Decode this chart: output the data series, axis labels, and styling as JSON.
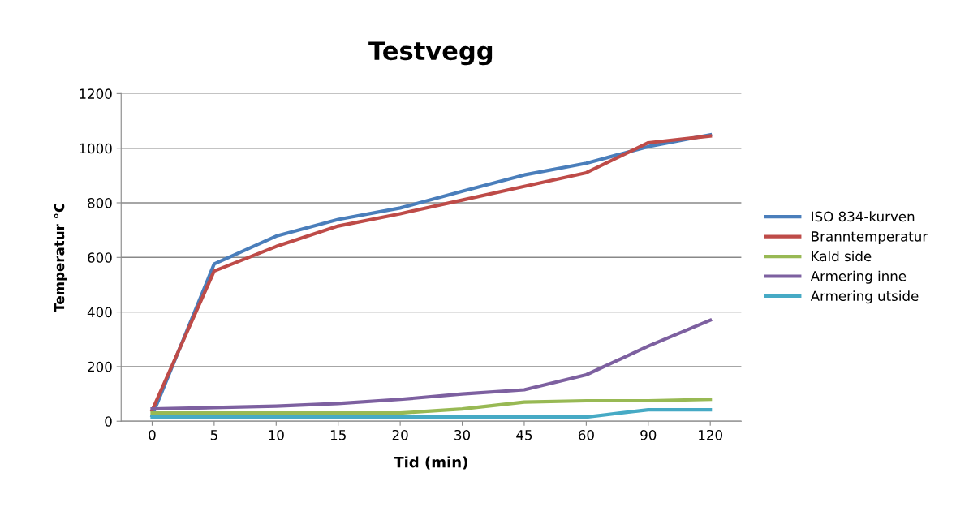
{
  "chart_data": {
    "type": "line",
    "title": "Testvegg",
    "xlabel": "Tid (min)",
    "ylabel": "Temperatur °C",
    "categories": [
      "0",
      "5",
      "10",
      "15",
      "20",
      "30",
      "45",
      "60",
      "90",
      "120"
    ],
    "ylim": [
      0,
      1200
    ],
    "yticks": [
      0,
      200,
      400,
      600,
      800,
      1000,
      1200
    ],
    "grid": "y",
    "legend": "right",
    "marker": "none",
    "line_style": "solid",
    "series": [
      {
        "name": "ISO 834-kurven",
        "color": "#4a7ebb",
        "values": [
          20,
          576,
          678,
          739,
          781,
          842,
          902,
          945,
          1006,
          1049
        ]
      },
      {
        "name": "Branntemperatur",
        "color": "#be4b48",
        "values": [
          40,
          550,
          640,
          715,
          760,
          810,
          860,
          910,
          1020,
          1045
        ]
      },
      {
        "name": "Kald side",
        "color": "#98b954",
        "values": [
          30,
          30,
          30,
          30,
          30,
          45,
          70,
          75,
          75,
          80
        ]
      },
      {
        "name": "Armering inne",
        "color": "#7d60a0",
        "values": [
          45,
          50,
          55,
          65,
          80,
          100,
          115,
          170,
          275,
          370
        ]
      },
      {
        "name": "Armering utside",
        "color": "#46aac5",
        "values": [
          15,
          15,
          15,
          15,
          15,
          15,
          15,
          15,
          42,
          42
        ]
      }
    ]
  }
}
